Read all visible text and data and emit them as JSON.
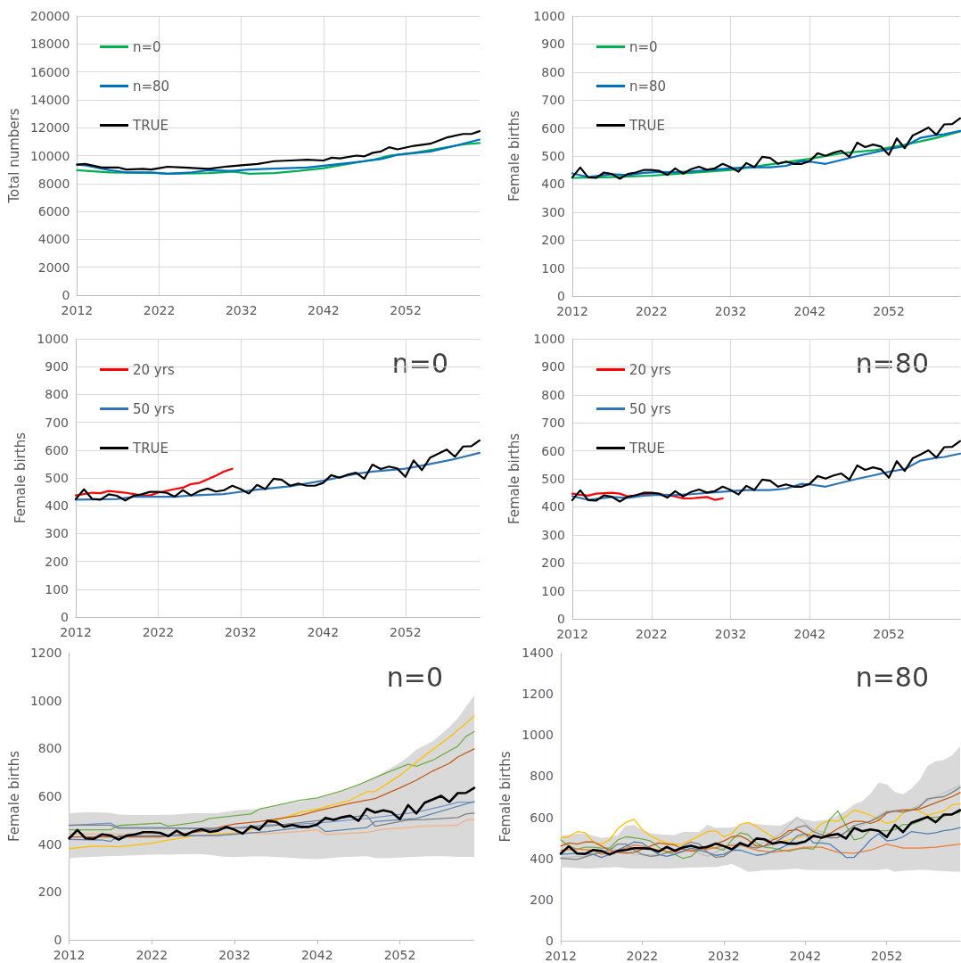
{
  "chart_data": [
    {
      "type": "line",
      "ylabel": "Total numbers",
      "xlim": [
        2012,
        2061
      ],
      "xticks": [
        2012,
        2022,
        2032,
        2042,
        2052
      ],
      "ylim": [
        0,
        20000
      ],
      "yticks": [
        0,
        2000,
        4000,
        6000,
        8000,
        10000,
        12000,
        14000,
        16000,
        18000,
        20000
      ],
      "grid": true,
      "legend": "top left",
      "marker": "none",
      "line_style": "solid",
      "series": [
        {
          "name": "n=0",
          "color": "#00b050",
          "x": [
            2012,
            2016,
            2022,
            2023,
            2028,
            2031,
            2033,
            2036,
            2039,
            2042,
            2044,
            2048,
            2050,
            2053,
            2055,
            2059,
            2061
          ],
          "values": [
            8950,
            8800,
            8750,
            8700,
            8750,
            8850,
            8700,
            8750,
            8900,
            9100,
            9300,
            9700,
            10000,
            10200,
            10400,
            10800,
            10900
          ]
        },
        {
          "name": "n=80",
          "color": "#0070c0",
          "x": [
            2012,
            2013,
            2016,
            2018,
            2021,
            2023,
            2026,
            2028,
            2031,
            2033,
            2035,
            2040,
            2044,
            2047,
            2049,
            2051,
            2055,
            2058,
            2061
          ],
          "values": [
            9350,
            9300,
            8950,
            8800,
            8800,
            8700,
            8800,
            8950,
            8900,
            9000,
            9050,
            9150,
            9400,
            9600,
            9750,
            10050,
            10300,
            10700,
            11150
          ]
        },
        {
          "name": "TRUE",
          "color": "#000000",
          "x": [
            2012,
            2013,
            2015,
            2017,
            2018,
            2020,
            2021,
            2022,
            2023,
            2025,
            2028,
            2030,
            2032,
            2034,
            2036,
            2038,
            2040,
            2042,
            2043,
            2044,
            2046,
            2047,
            2048,
            2049,
            2050,
            2051,
            2053,
            2055,
            2057,
            2059,
            2060,
            2061
          ],
          "values": [
            9350,
            9400,
            9150,
            9150,
            9000,
            9050,
            9000,
            9100,
            9200,
            9150,
            9050,
            9200,
            9300,
            9400,
            9600,
            9650,
            9700,
            9650,
            9850,
            9800,
            10000,
            9950,
            10200,
            10300,
            10600,
            10450,
            10700,
            10850,
            11300,
            11550,
            11550,
            11750
          ]
        }
      ]
    },
    {
      "type": "line",
      "ylabel": "Female births",
      "xlim": [
        2012,
        2061
      ],
      "xticks": [
        2012,
        2022,
        2032,
        2042,
        2052
      ],
      "ylim": [
        0,
        1000
      ],
      "yticks": [
        0,
        100,
        200,
        300,
        400,
        500,
        600,
        700,
        800,
        900,
        1000
      ],
      "grid": true,
      "legend": "top left",
      "marker": "none",
      "line_style": "solid",
      "x": [
        2012,
        2013,
        2014,
        2015,
        2016,
        2017,
        2018,
        2019,
        2020,
        2021,
        2022,
        2023,
        2024,
        2025,
        2026,
        2027,
        2028,
        2029,
        2030,
        2031,
        2032,
        2033,
        2034,
        2035,
        2036,
        2037,
        2038,
        2039,
        2040,
        2041,
        2042,
        2043,
        2044,
        2045,
        2046,
        2047,
        2048,
        2049,
        2050,
        2051,
        2052,
        2053,
        2054,
        2055,
        2056,
        2057,
        2058,
        2059,
        2060,
        2061
      ],
      "series": [
        {
          "name": "n=0",
          "color": "#00b050",
          "x": [
            2012,
            2017,
            2022,
            2027,
            2032,
            2037,
            2042,
            2046,
            2050,
            2054,
            2058,
            2061
          ],
          "values": [
            422,
            425,
            430,
            440,
            450,
            470,
            490,
            510,
            520,
            540,
            565,
            588
          ]
        },
        {
          "name": "n=80",
          "color": "#0070c0",
          "x": [
            2012,
            2014,
            2017,
            2019,
            2021,
            2023,
            2025,
            2027,
            2030,
            2034,
            2037,
            2039,
            2041,
            2042,
            2044,
            2048,
            2050,
            2052,
            2054,
            2056,
            2058,
            2059,
            2061
          ],
          "values": [
            438,
            425,
            435,
            432,
            440,
            443,
            442,
            445,
            452,
            460,
            460,
            465,
            482,
            480,
            472,
            500,
            512,
            525,
            535,
            565,
            575,
            578,
            590
          ]
        },
        {
          "name": "TRUE",
          "color": "#000000",
          "values": [
            424,
            459,
            424,
            422,
            441,
            436,
            419,
            436,
            441,
            450,
            450,
            447,
            433,
            456,
            437,
            453,
            462,
            451,
            456,
            472,
            460,
            444,
            475,
            460,
            497,
            493,
            472,
            480,
            472,
            472,
            482,
            510,
            501,
            512,
            519,
            497,
            548,
            532,
            541,
            534,
            504,
            563,
            528,
            573,
            587,
            602,
            576,
            613,
            614,
            635
          ]
        }
      ]
    },
    {
      "type": "line",
      "ylabel": "Female births",
      "annotations": [
        "n=0"
      ],
      "xlim": [
        2012,
        2061
      ],
      "xticks": [
        2012,
        2022,
        2032,
        2042,
        2052
      ],
      "ylim": [
        0,
        1000
      ],
      "yticks": [
        0,
        100,
        200,
        300,
        400,
        500,
        600,
        700,
        800,
        900,
        1000
      ],
      "grid": true,
      "legend": "top left",
      "marker": "none",
      "line_style": "solid",
      "x": [
        2012,
        2013,
        2014,
        2015,
        2016,
        2017,
        2018,
        2019,
        2020,
        2021,
        2022,
        2023,
        2024,
        2025,
        2026,
        2027,
        2028,
        2029,
        2030,
        2031,
        2032,
        2033,
        2034,
        2035,
        2036,
        2037,
        2038,
        2039,
        2040,
        2041,
        2042,
        2043,
        2044,
        2045,
        2046,
        2047,
        2048,
        2049,
        2050,
        2051,
        2052,
        2053,
        2054,
        2055,
        2056,
        2057,
        2058,
        2059,
        2060,
        2061
      ],
      "series": [
        {
          "name": "20 yrs",
          "color": "#ff0000",
          "x": [
            2012,
            2014,
            2015,
            2016,
            2018,
            2020,
            2021,
            2022,
            2024,
            2025,
            2026,
            2027,
            2028,
            2029,
            2030,
            2031
          ],
          "values": [
            437,
            447,
            445,
            453,
            447,
            437,
            437,
            447,
            460,
            465,
            478,
            482,
            495,
            508,
            523,
            533
          ]
        },
        {
          "name": "50 yrs",
          "color": "#2e75b6",
          "x": [
            2012,
            2017,
            2019,
            2022,
            2024,
            2026,
            2030,
            2034,
            2038,
            2042,
            2046,
            2048,
            2052,
            2055,
            2058,
            2061
          ],
          "values": [
            422,
            424,
            432,
            432,
            432,
            437,
            442,
            458,
            470,
            490,
            515,
            523,
            533,
            550,
            568,
            590
          ]
        },
        {
          "name": "TRUE",
          "color": "#000000",
          "values": [
            424,
            459,
            424,
            422,
            441,
            436,
            419,
            436,
            441,
            450,
            450,
            447,
            433,
            456,
            437,
            453,
            462,
            451,
            456,
            472,
            460,
            444,
            475,
            460,
            497,
            493,
            472,
            480,
            472,
            472,
            482,
            510,
            501,
            512,
            519,
            497,
            548,
            532,
            541,
            534,
            504,
            563,
            528,
            573,
            587,
            602,
            576,
            613,
            614,
            635
          ]
        }
      ]
    },
    {
      "type": "line",
      "ylabel": "Female births",
      "annotations": [
        "n=80"
      ],
      "xlim": [
        2012,
        2061
      ],
      "xticks": [
        2012,
        2022,
        2032,
        2042,
        2052
      ],
      "ylim": [
        0,
        1000
      ],
      "yticks": [
        0,
        100,
        200,
        300,
        400,
        500,
        600,
        700,
        800,
        900,
        1000
      ],
      "grid": true,
      "legend": "top left",
      "marker": "none",
      "line_style": "solid",
      "x": [
        2012,
        2013,
        2014,
        2015,
        2016,
        2017,
        2018,
        2019,
        2020,
        2021,
        2022,
        2023,
        2024,
        2025,
        2026,
        2027,
        2028,
        2029,
        2030,
        2031,
        2032,
        2033,
        2034,
        2035,
        2036,
        2037,
        2038,
        2039,
        2040,
        2041,
        2042,
        2043,
        2044,
        2045,
        2046,
        2047,
        2048,
        2049,
        2050,
        2051,
        2052,
        2053,
        2054,
        2055,
        2056,
        2057,
        2058,
        2059,
        2060,
        2061
      ],
      "series": [
        {
          "name": "20 yrs",
          "color": "#ff0000",
          "x": [
            2012,
            2013,
            2014,
            2015,
            2017,
            2018,
            2019,
            2021,
            2022,
            2023,
            2025,
            2026,
            2027,
            2028,
            2029,
            2030,
            2031
          ],
          "values": [
            447,
            443,
            440,
            447,
            450,
            447,
            437,
            445,
            447,
            445,
            437,
            430,
            430,
            433,
            435,
            425,
            430
          ]
        },
        {
          "name": "50 yrs",
          "color": "#2e75b6",
          "x": [
            2012,
            2014,
            2017,
            2019,
            2021,
            2023,
            2025,
            2027,
            2030,
            2034,
            2037,
            2039,
            2041,
            2042,
            2044,
            2048,
            2050,
            2052,
            2054,
            2056,
            2058,
            2059,
            2061
          ],
          "values": [
            438,
            425,
            435,
            432,
            440,
            443,
            442,
            445,
            452,
            460,
            460,
            465,
            482,
            480,
            472,
            500,
            512,
            525,
            535,
            565,
            575,
            578,
            590
          ]
        },
        {
          "name": "TRUE",
          "color": "#000000",
          "values": [
            424,
            459,
            424,
            422,
            441,
            436,
            419,
            436,
            441,
            450,
            450,
            447,
            433,
            456,
            437,
            453,
            462,
            451,
            456,
            472,
            460,
            444,
            475,
            460,
            497,
            493,
            472,
            480,
            472,
            472,
            482,
            510,
            501,
            512,
            519,
            497,
            548,
            532,
            541,
            534,
            504,
            563,
            528,
            573,
            587,
            602,
            576,
            613,
            614,
            635
          ]
        }
      ]
    },
    {
      "type": "line",
      "ylabel": "Female births",
      "annotations": [
        "n=0"
      ],
      "xlim": [
        2012,
        2061
      ],
      "xticks": [
        2012,
        2022,
        2032,
        2042,
        2052
      ],
      "ylim": [
        0,
        1200
      ],
      "yticks": [
        0,
        200,
        400,
        600,
        800,
        1000,
        1200
      ],
      "grid": false,
      "legend": false,
      "marker": "none",
      "line_style": "solid",
      "x": [
        2012,
        2013,
        2014,
        2015,
        2016,
        2017,
        2018,
        2019,
        2020,
        2021,
        2022,
        2023,
        2024,
        2025,
        2026,
        2027,
        2028,
        2029,
        2030,
        2031,
        2032,
        2033,
        2034,
        2035,
        2036,
        2037,
        2038,
        2039,
        2040,
        2041,
        2042,
        2043,
        2044,
        2045,
        2046,
        2047,
        2048,
        2049,
        2050,
        2051,
        2052,
        2053,
        2054,
        2055,
        2056,
        2057,
        2058,
        2059,
        2060,
        2061
      ],
      "series": [
        {
          "color": "#70ad47",
          "x": [
            2012,
            2017,
            2018,
            2023,
            2024,
            2028,
            2029,
            2034,
            2035,
            2040,
            2042,
            2045,
            2047,
            2050,
            2053,
            2054,
            2056,
            2059,
            2060,
            2061
          ],
          "values": [
            460,
            460,
            478,
            488,
            475,
            494,
            507,
            526,
            546,
            584,
            593,
            623,
            648,
            693,
            734,
            725,
            751,
            809,
            850,
            870
          ]
        },
        {
          "color": "#ffc000",
          "x": [
            2012,
            2015,
            2018,
            2022,
            2024,
            2027,
            2030,
            2033,
            2036,
            2040,
            2042,
            2046,
            2048,
            2049,
            2052,
            2055,
            2058,
            2060,
            2061
          ],
          "values": [
            381,
            392,
            389,
            404,
            417,
            434,
            443,
            449,
            488,
            533,
            546,
            584,
            619,
            619,
            687,
            770,
            847,
            905,
            935
          ]
        },
        {
          "color": "#c55a11",
          "x": [
            2012,
            2023,
            2028,
            2032,
            2035,
            2040,
            2042,
            2046,
            2049,
            2052,
            2054,
            2056,
            2058,
            2059,
            2061
          ],
          "values": [
            430,
            430,
            453,
            484,
            494,
            520,
            539,
            571,
            590,
            635,
            667,
            706,
            738,
            764,
            798
          ]
        },
        {
          "color": "#f4b183",
          "x": [
            2012,
            2022,
            2028,
            2034,
            2036,
            2040,
            2042,
            2043,
            2048,
            2050,
            2055,
            2059,
            2060,
            2061
          ],
          "values": [
            443,
            439,
            436,
            447,
            443,
            453,
            460,
            440,
            449,
            462,
            475,
            479,
            501,
            503
          ]
        },
        {
          "color": "#6f95d3",
          "x": [
            2012,
            2017,
            2018,
            2023,
            2030,
            2036,
            2040,
            2042,
            2048,
            2050,
            2054,
            2058,
            2059,
            2061
          ],
          "values": [
            478,
            488,
            469,
            469,
            462,
            480,
            484,
            488,
            507,
            516,
            533,
            565,
            575,
            575
          ]
        },
        {
          "color": "#5a86b0",
          "x": [
            2012,
            2016,
            2017,
            2018,
            2030,
            2036,
            2040,
            2042,
            2043,
            2048,
            2049,
            2054,
            2061
          ],
          "values": [
            420,
            417,
            411,
            434,
            436,
            452,
            469,
            478,
            452,
            469,
            494,
            507,
            578
          ]
        },
        {
          "color": "#7f7f7f",
          "x": [
            2012,
            2017,
            2018,
            2030,
            2033,
            2036,
            2048,
            2049,
            2053,
            2055,
            2059,
            2060,
            2061
          ],
          "values": [
            479,
            479,
            466,
            466,
            467,
            475,
            520,
            475,
            501,
            503,
            511,
            526,
            530
          ]
        },
        {
          "color": "#000000",
          "values": [
            424,
            459,
            424,
            422,
            441,
            436,
            419,
            436,
            441,
            450,
            450,
            447,
            433,
            456,
            437,
            453,
            462,
            451,
            456,
            472,
            460,
            444,
            475,
            460,
            497,
            493,
            472,
            480,
            472,
            472,
            482,
            510,
            501,
            512,
            519,
            497,
            548,
            532,
            541,
            534,
            504,
            563,
            528,
            573,
            587,
            602,
            576,
            613,
            614,
            635
          ],
          "lower": [
            340,
            344,
            346,
            347,
            348,
            350,
            350,
            352,
            353,
            355,
            356,
            357,
            356,
            357,
            358,
            359,
            358,
            355,
            350,
            347,
            346,
            347,
            348,
            348,
            348,
            346,
            345,
            343,
            340,
            338,
            337,
            340,
            343,
            346,
            347,
            348,
            349,
            342,
            341,
            342,
            344,
            346,
            347,
            348,
            349,
            349,
            348,
            347,
            347,
            347
          ],
          "upper": [
            529,
            531,
            533,
            533,
            532,
            530,
            524,
            523,
            523,
            523,
            523,
            523,
            523,
            524,
            527,
            529,
            529,
            529,
            530,
            535,
            540,
            543,
            545,
            548,
            552,
            560,
            566,
            572,
            578,
            586,
            592,
            600,
            610,
            620,
            632,
            645,
            660,
            680,
            700,
            720,
            740,
            765,
            795,
            812,
            830,
            860,
            890,
            925,
            975,
            1020
          ]
        }
      ]
    },
    {
      "type": "line",
      "ylabel": "Female births",
      "annotations": [
        "n=80"
      ],
      "xlim": [
        2012,
        2061
      ],
      "xticks": [
        2012,
        2022,
        2032,
        2042,
        2052
      ],
      "ylim": [
        0,
        1400
      ],
      "yticks": [
        0,
        200,
        400,
        600,
        800,
        1000,
        1200,
        1400
      ],
      "grid": false,
      "legend": false,
      "marker": "none",
      "line_style": "solid",
      "x": [
        2012,
        2013,
        2014,
        2015,
        2016,
        2017,
        2018,
        2019,
        2020,
        2021,
        2022,
        2023,
        2024,
        2025,
        2026,
        2027,
        2028,
        2029,
        2030,
        2031,
        2032,
        2033,
        2034,
        2035,
        2036,
        2037,
        2038,
        2039,
        2040,
        2041,
        2042,
        2043,
        2044,
        2045,
        2046,
        2047,
        2048,
        2049,
        2050,
        2051,
        2052,
        2053,
        2054,
        2055,
        2056,
        2057,
        2058,
        2059,
        2060,
        2061
      ],
      "series": [
        {
          "color": "#bfbfbf",
          "x": [
            2012,
            2015,
            2018,
            2021,
            2024,
            2027,
            2030,
            2033,
            2036,
            2039,
            2041,
            2043,
            2046,
            2049,
            2052,
            2055,
            2058,
            2061
          ],
          "values": [
            405,
            410,
            450,
            420,
            415,
            455,
            410,
            470,
            460,
            520,
            600,
            540,
            510,
            560,
            630,
            640,
            700,
            755
          ]
        },
        {
          "color": "#ffc000",
          "values": [
            500,
            505,
            530,
            525,
            480,
            470,
            490,
            545,
            575,
            590,
            540,
            510,
            490,
            475,
            470,
            470,
            490,
            510,
            530,
            535,
            505,
            520,
            565,
            575,
            555,
            530,
            505,
            480,
            490,
            500,
            510,
            530,
            570,
            585,
            580,
            605,
            635,
            625,
            610,
            590,
            570,
            580,
            620,
            640,
            630,
            610,
            620,
            630,
            660,
            665
          ]
        },
        {
          "color": "#70ad47",
          "values": [
            490,
            460,
            445,
            455,
            455,
            450,
            450,
            490,
            505,
            500,
            495,
            485,
            455,
            430,
            420,
            400,
            410,
            445,
            460,
            450,
            440,
            490,
            525,
            515,
            475,
            455,
            450,
            440,
            435,
            445,
            450,
            445,
            500,
            590,
            630,
            560,
            490,
            500,
            540,
            535,
            535,
            540,
            565,
            565,
            580,
            600,
            600,
            605,
            615,
            625
          ]
        },
        {
          "color": "#c55a11",
          "values": [
            460,
            475,
            470,
            480,
            480,
            460,
            440,
            430,
            425,
            430,
            445,
            460,
            475,
            470,
            465,
            445,
            435,
            440,
            450,
            470,
            485,
            505,
            510,
            490,
            460,
            460,
            490,
            505,
            535,
            540,
            520,
            505,
            505,
            520,
            545,
            565,
            580,
            580,
            570,
            585,
            620,
            630,
            635,
            635,
            640,
            655,
            670,
            685,
            700,
            720
          ]
        },
        {
          "color": "#ed7d31",
          "x": [
            2012,
            2014,
            2016,
            2017,
            2018,
            2020,
            2021,
            2022,
            2024,
            2026,
            2028,
            2030,
            2032,
            2034,
            2036,
            2038,
            2040,
            2042,
            2044,
            2046,
            2048,
            2050,
            2052,
            2054,
            2056,
            2058,
            2061
          ],
          "values": [
            440,
            445,
            440,
            420,
            430,
            450,
            465,
            460,
            440,
            430,
            440,
            445,
            460,
            465,
            440,
            430,
            440,
            455,
            455,
            430,
            425,
            440,
            470,
            450,
            450,
            455,
            470
          ]
        },
        {
          "color": "#4f7fb4",
          "x": [
            2012,
            2014,
            2016,
            2017,
            2018,
            2020,
            2021,
            2022,
            2024,
            2025,
            2026,
            2028,
            2030,
            2031,
            2032,
            2033,
            2034,
            2036,
            2037,
            2039,
            2040,
            2041,
            2042,
            2043,
            2044,
            2045,
            2046,
            2047,
            2048,
            2049,
            2050,
            2051,
            2052,
            2053,
            2054,
            2055,
            2056,
            2057,
            2058,
            2059,
            2060,
            2061
          ],
          "values": [
            420,
            425,
            420,
            405,
            420,
            460,
            480,
            475,
            420,
            410,
            420,
            450,
            430,
            415,
            420,
            440,
            440,
            415,
            420,
            450,
            470,
            510,
            520,
            475,
            475,
            470,
            440,
            405,
            405,
            445,
            490,
            520,
            485,
            490,
            505,
            530,
            525,
            520,
            525,
            535,
            540,
            550
          ]
        },
        {
          "color": "#7f7f7f",
          "x": [
            2012,
            2014,
            2016,
            2018,
            2019,
            2020,
            2021,
            2022,
            2023,
            2024,
            2026,
            2028,
            2029,
            2030,
            2031,
            2032,
            2034,
            2036,
            2038,
            2040,
            2041,
            2042,
            2043,
            2044,
            2045,
            2046,
            2047,
            2048,
            2049,
            2050,
            2051,
            2052,
            2053,
            2054,
            2055,
            2056,
            2057,
            2058,
            2059,
            2060,
            2061
          ],
          "values": [
            400,
            395,
            420,
            440,
            470,
            470,
            440,
            420,
            410,
            415,
            440,
            480,
            470,
            430,
            405,
            410,
            465,
            450,
            470,
            520,
            550,
            560,
            530,
            515,
            500,
            500,
            530,
            560,
            570,
            580,
            600,
            625,
            630,
            625,
            635,
            650,
            690,
            695,
            700,
            720,
            745
          ]
        },
        {
          "color": "#000000",
          "values": [
            424,
            459,
            424,
            422,
            441,
            436,
            419,
            436,
            441,
            450,
            450,
            447,
            433,
            456,
            437,
            453,
            462,
            451,
            456,
            472,
            460,
            444,
            475,
            460,
            497,
            493,
            472,
            480,
            472,
            472,
            482,
            510,
            501,
            512,
            519,
            497,
            548,
            532,
            541,
            534,
            504,
            563,
            528,
            573,
            587,
            602,
            576,
            613,
            614,
            635
          ],
          "lower": [
            358,
            356,
            353,
            350,
            352,
            354,
            356,
            358,
            352,
            350,
            350,
            350,
            350,
            350,
            352,
            354,
            355,
            356,
            358,
            358,
            365,
            373,
            355,
            335,
            338,
            342,
            343,
            345,
            348,
            350,
            345,
            343,
            343,
            343,
            343,
            343,
            343,
            343,
            343,
            343,
            350,
            335,
            340,
            342,
            345,
            343,
            340,
            338,
            336,
            335
          ],
          "upper": [
            510,
            515,
            520,
            522,
            510,
            499,
            505,
            514,
            559,
            562,
            540,
            522,
            518,
            515,
            514,
            529,
            529,
            529,
            563,
            548,
            549,
            551,
            560,
            574,
            568,
            563,
            560,
            559,
            580,
            596,
            590,
            581,
            585,
            589,
            610,
            633,
            663,
            678,
            715,
            768,
            760,
            723,
            712,
            738,
            779,
            849,
            872,
            879,
            900,
            945
          ]
        }
      ]
    }
  ]
}
